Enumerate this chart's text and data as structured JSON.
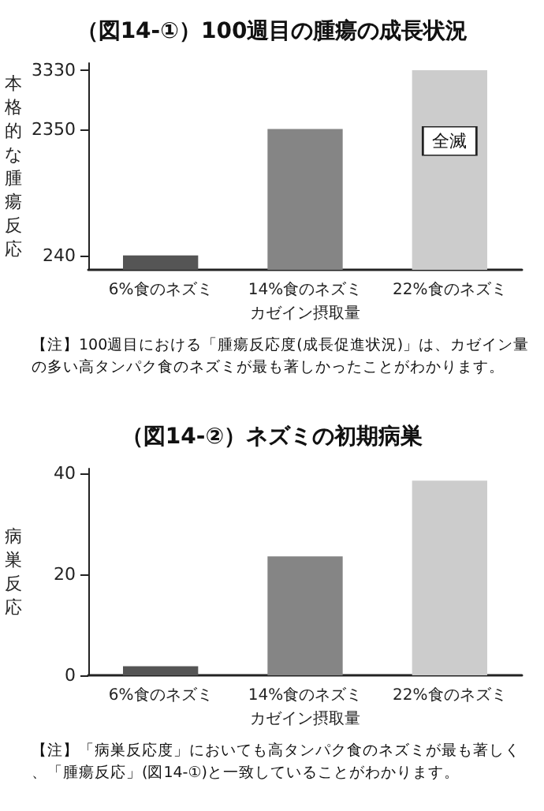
{
  "chart_data": [
    {
      "type": "bar",
      "title": "（図14-①）100週目の腫瘍の成長状況",
      "xlabel": "カゼイン摂取量",
      "ylabel": "本格的な腫瘍反応",
      "categories": [
        "6%食のネズミ",
        "14%食のネズミ",
        "22%食のネズミ"
      ],
      "values": [
        240,
        2350,
        3330
      ],
      "colors": [
        "#555555",
        "#858585",
        "#cccccc"
      ],
      "ylim": [
        0,
        3450
      ],
      "yticks": [
        240,
        2350,
        3330
      ],
      "grid": false,
      "annotations": [
        {
          "text": "全滅",
          "x": "22%食のネズミ",
          "y": 2150
        },
        "【注】100週目における「腫瘍反応度(成長促進状況)」は、カゼイン量の多い高タンパク食のネズミが最も著しかったことがわかります。"
      ]
    },
    {
      "type": "bar",
      "title": "（図14-②）ネズミの初期病巣",
      "xlabel": "カゼイン摂取量",
      "ylabel": "病巣反応",
      "categories": [
        "6%食のネズミ",
        "14%食のネズミ",
        "22%食のネズミ"
      ],
      "values": [
        1.8,
        23.6,
        38.6
      ],
      "colors": [
        "#555555",
        "#858585",
        "#cccccc"
      ],
      "ylim": [
        0,
        41
      ],
      "yticks": [
        0,
        20,
        40
      ],
      "grid": false,
      "annotations": [
        "【注】「病巣反応度」においても高タンパク食のネズミが最も著しく、「腫瘍反応」(図14-①)と一致していることがわかります。"
      ]
    }
  ]
}
